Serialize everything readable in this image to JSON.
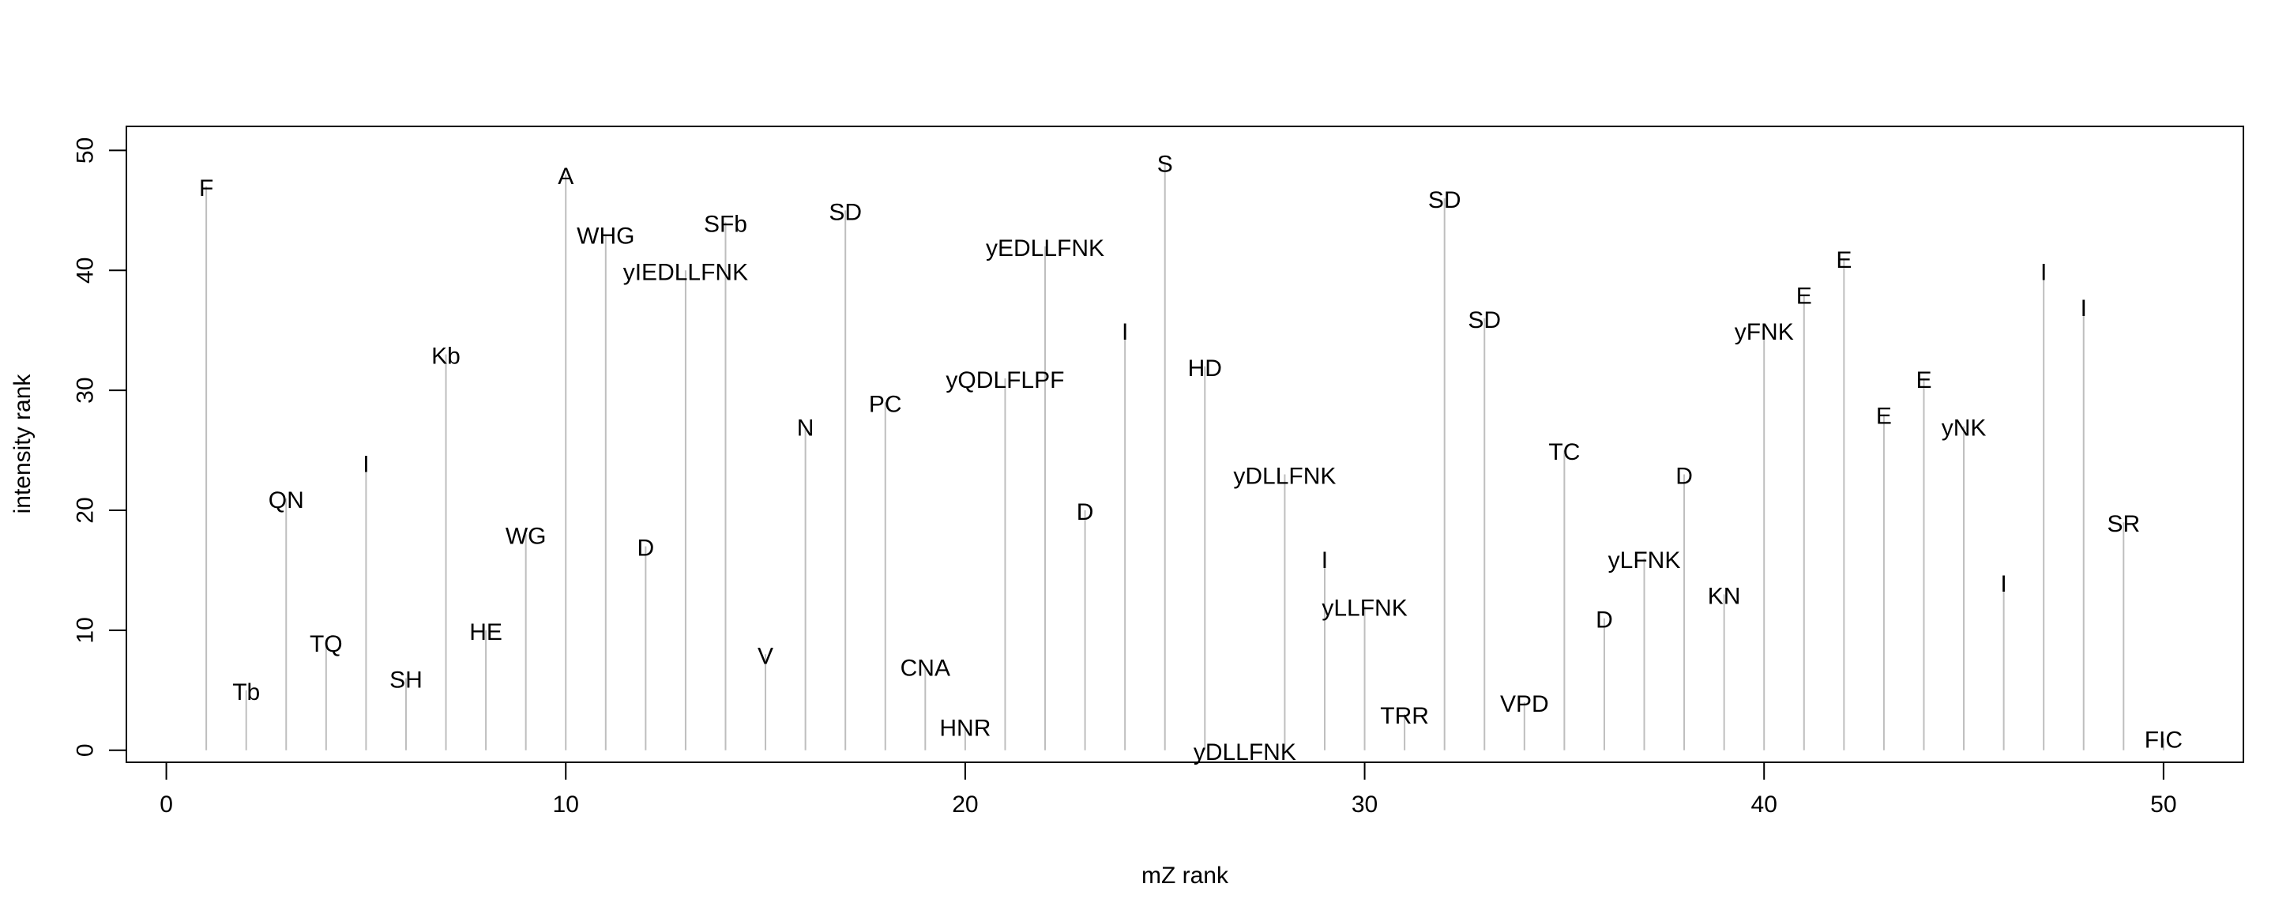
{
  "chart_data": {
    "type": "stem",
    "title": "",
    "xlabel": "mZ rank",
    "ylabel": "intensity rank",
    "xlim": [
      -1,
      52
    ],
    "ylim": [
      -1,
      52
    ],
    "xticks": [
      0,
      10,
      20,
      30,
      40,
      50
    ],
    "yticks": [
      0,
      10,
      20,
      30,
      40,
      50
    ],
    "grid": false,
    "stem_color": "#bebebe",
    "points": [
      {
        "x": 1,
        "y": 47,
        "label": "F"
      },
      {
        "x": 2,
        "y": 5,
        "label": "Tb"
      },
      {
        "x": 3,
        "y": 21,
        "label": "QN"
      },
      {
        "x": 4,
        "y": 9,
        "label": "TQ"
      },
      {
        "x": 5,
        "y": 24,
        "label": "I"
      },
      {
        "x": 6,
        "y": 6,
        "label": "SH"
      },
      {
        "x": 7,
        "y": 33,
        "label": "Kb"
      },
      {
        "x": 8,
        "y": 10,
        "label": "HE"
      },
      {
        "x": 9,
        "y": 18,
        "label": "WG"
      },
      {
        "x": 10,
        "y": 48,
        "label": "A"
      },
      {
        "x": 11,
        "y": 43,
        "label": "WHG"
      },
      {
        "x": 12,
        "y": 17,
        "label": "D"
      },
      {
        "x": 13,
        "y": 40,
        "label": "yIEDLLFNK"
      },
      {
        "x": 14,
        "y": 44,
        "label": "SFb"
      },
      {
        "x": 15,
        "y": 8,
        "label": "V"
      },
      {
        "x": 16,
        "y": 27,
        "label": "N"
      },
      {
        "x": 17,
        "y": 45,
        "label": "SD"
      },
      {
        "x": 18,
        "y": 29,
        "label": "PC"
      },
      {
        "x": 19,
        "y": 7,
        "label": "CNA"
      },
      {
        "x": 20,
        "y": 2,
        "label": "HNR"
      },
      {
        "x": 21,
        "y": 31,
        "label": "yQDLFLPF"
      },
      {
        "x": 22,
        "y": 42,
        "label": "yEDLLFNK"
      },
      {
        "x": 23,
        "y": 20,
        "label": "D"
      },
      {
        "x": 24,
        "y": 35,
        "label": "I"
      },
      {
        "x": 25,
        "y": 49,
        "label": "S"
      },
      {
        "x": 26,
        "y": 32,
        "label": "HD"
      },
      {
        "x": 27,
        "y": 0,
        "label": "yDLLFNK"
      },
      {
        "x": 28,
        "y": 23,
        "label": "yDLLFNK"
      },
      {
        "x": 29,
        "y": 16,
        "label": "I"
      },
      {
        "x": 30,
        "y": 12,
        "label": "yLLFNK"
      },
      {
        "x": 31,
        "y": 3,
        "label": "TRR"
      },
      {
        "x": 32,
        "y": 46,
        "label": "SD"
      },
      {
        "x": 33,
        "y": 36,
        "label": "SD"
      },
      {
        "x": 34,
        "y": 4,
        "label": "VPD"
      },
      {
        "x": 35,
        "y": 25,
        "label": "TC"
      },
      {
        "x": 36,
        "y": 11,
        "label": "D"
      },
      {
        "x": 37,
        "y": 16,
        "label": "yLFNK"
      },
      {
        "x": 38,
        "y": 23,
        "label": "D"
      },
      {
        "x": 39,
        "y": 13,
        "label": "KN"
      },
      {
        "x": 40,
        "y": 35,
        "label": "yFNK"
      },
      {
        "x": 41,
        "y": 38,
        "label": "E"
      },
      {
        "x": 42,
        "y": 41,
        "label": "E"
      },
      {
        "x": 43,
        "y": 28,
        "label": "E"
      },
      {
        "x": 44,
        "y": 31,
        "label": "E"
      },
      {
        "x": 45,
        "y": 27,
        "label": "yNK"
      },
      {
        "x": 46,
        "y": 14,
        "label": "I"
      },
      {
        "x": 47,
        "y": 40,
        "label": "I"
      },
      {
        "x": 48,
        "y": 37,
        "label": "I"
      },
      {
        "x": 49,
        "y": 19,
        "label": "SR"
      },
      {
        "x": 50,
        "y": 1,
        "label": "FIC"
      }
    ]
  }
}
